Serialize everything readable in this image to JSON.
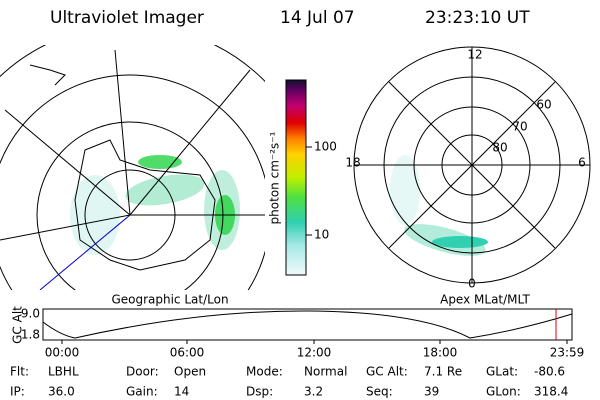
{
  "header": {
    "instrument": "Ultraviolet Imager",
    "date": "14 Jul 07",
    "time": "23:23:10 UT"
  },
  "left_map": {
    "label": "Geographic Lat/Lon"
  },
  "right_map": {
    "label": "Apex MLat/MLT",
    "mlt_labels": [
      "12",
      "18",
      "6",
      "0"
    ],
    "lat_labels": [
      "60",
      "70",
      "80"
    ]
  },
  "colorbar": {
    "label": "photon cm⁻²s⁻¹",
    "ticks": [
      "100",
      "10"
    ]
  },
  "altitude_plot": {
    "ylabel": "GC Alt",
    "yticks": [
      "9.0",
      "1.8"
    ],
    "xticks": [
      "00:00",
      "06:00",
      "12:00",
      "18:00",
      "23:59"
    ]
  },
  "status": [
    [
      [
        "Flt:",
        "LBHL"
      ],
      [
        "Door:",
        "Open"
      ],
      [
        "Mode:",
        "Normal"
      ],
      [
        "GC Alt:",
        "7.1 Re"
      ],
      [
        "GLat:",
        "-80.6"
      ]
    ],
    [
      [
        "IP:",
        "36.0"
      ],
      [
        "Gain:",
        "14"
      ],
      [
        "Dsp:",
        "3.2"
      ],
      [
        "Seq:",
        "39"
      ],
      [
        "GLon:",
        "318.4"
      ]
    ]
  ]
}
